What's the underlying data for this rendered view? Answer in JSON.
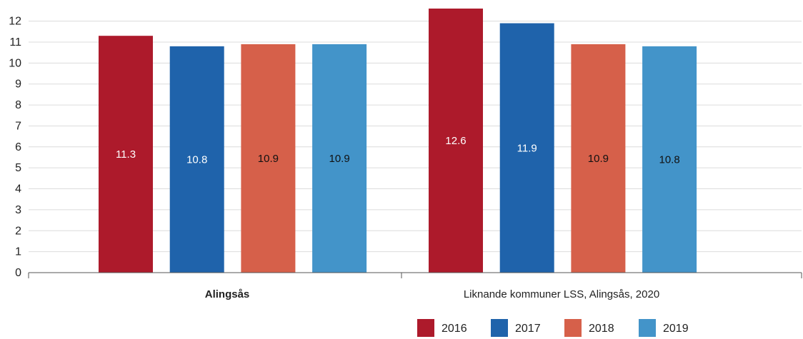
{
  "chart_data": {
    "type": "bar",
    "categories": [
      "Alingsås",
      "Liknande kommuner LSS, Alingsås, 2020"
    ],
    "category_bold": [
      true,
      false
    ],
    "series": [
      {
        "name": "2016",
        "color": "#ad1a2b",
        "label_color": "#ffffff",
        "values": [
          11.3,
          12.6
        ]
      },
      {
        "name": "2017",
        "color": "#1f63ab",
        "label_color": "#ffffff",
        "values": [
          10.8,
          11.9
        ]
      },
      {
        "name": "2018",
        "color": "#d6604a",
        "label_color": "#111111",
        "values": [
          10.9,
          10.9
        ]
      },
      {
        "name": "2019",
        "color": "#4394c9",
        "label_color": "#111111",
        "values": [
          10.9,
          10.8
        ]
      }
    ],
    "ylim": [
      0,
      12.6
    ],
    "yticks": [
      0,
      1,
      2,
      3,
      4,
      5,
      6,
      7,
      8,
      9,
      10,
      11,
      12
    ],
    "grid": true,
    "legend_position": "bottom-right",
    "title": "",
    "xlabel": "",
    "ylabel": ""
  }
}
